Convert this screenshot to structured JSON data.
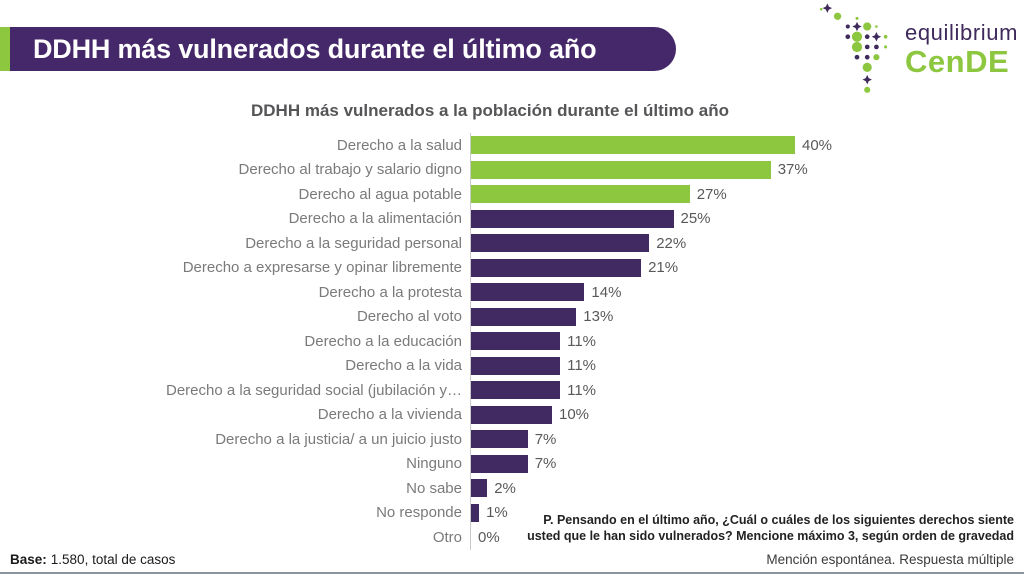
{
  "header": {
    "title": "DDHH más vulnerados durante el último año"
  },
  "logo": {
    "brand_top": "equilibrium",
    "brand_bottom": "CenDE",
    "map_icon": "dotted-latin-america-map-icon"
  },
  "chart_data": {
    "type": "bar",
    "orientation": "horizontal",
    "title": "DDHH más vulnerados a la población durante el último año",
    "categories": [
      "Derecho a la salud",
      "Derecho al trabajo y salario digno",
      "Derecho al agua potable",
      "Derecho a la alimentación",
      "Derecho a la seguridad personal",
      "Derecho a expresarse y opinar libremente",
      "Derecho a la protesta",
      "Derecho al voto",
      "Derecho a la educación",
      "Derecho a la vida",
      "Derecho a la seguridad social (jubilación y…",
      "Derecho a la vivienda",
      "Derecho a la justicia/ a un juicio justo",
      "Ninguno",
      "No sabe",
      "No responde",
      "Otro"
    ],
    "values": [
      40,
      37,
      27,
      25,
      22,
      21,
      14,
      13,
      11,
      11,
      11,
      10,
      7,
      7,
      2,
      1,
      0
    ],
    "value_suffix": "%",
    "xlim": [
      0,
      45
    ],
    "grid": false,
    "legend": "none",
    "value_labels": "outside-end",
    "highlight_count": 3,
    "highlight_color": "#8DC63F",
    "bar_color": "#412961"
  },
  "question_note": {
    "line1": "P. Pensando en el último año, ¿Cuál o cuáles de los siguientes derechos siente",
    "line2": "usted que le han sido vulnerados? Mencione máximo 3, según orden de gravedad"
  },
  "footer": {
    "base_label": "Base:",
    "base_rest": "1.580, total de casos",
    "method_note": "Mención espontánea. Respuesta múltiple"
  },
  "colors": {
    "banner_purple": "#45286A",
    "accent_green": "#8DC63F",
    "bar_purple": "#412961",
    "logo_purple": "#3F2A5C",
    "label_gray": "#7A7A7A",
    "value_gray": "#595959",
    "title_gray": "#555558"
  }
}
